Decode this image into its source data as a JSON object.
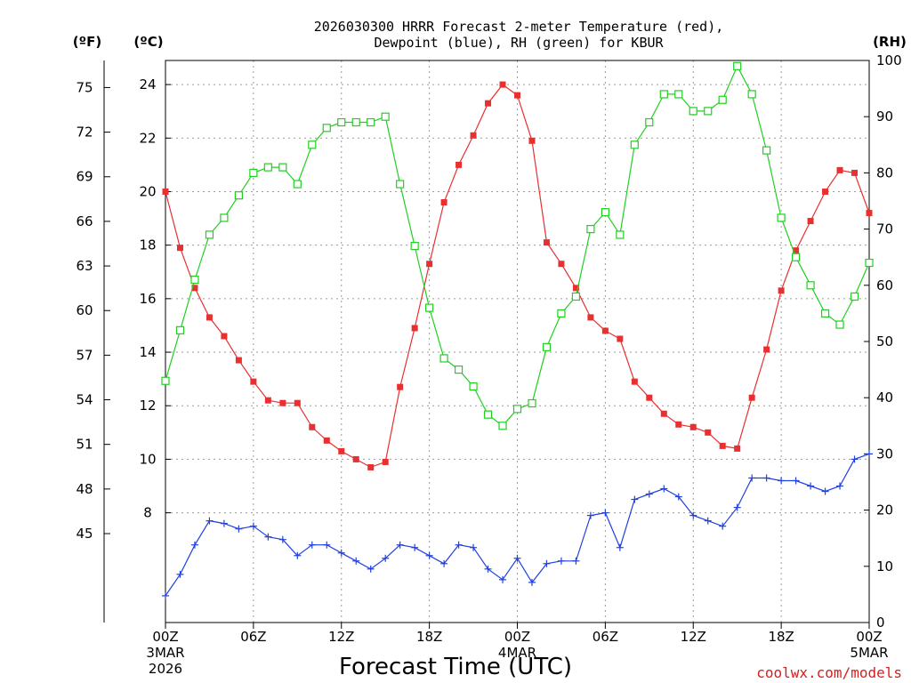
{
  "chart_data": {
    "type": "line",
    "title_line1": "2026030300 HRRR Forecast 2-meter Temperature (red),",
    "title_line2": "Dewpoint (blue), RH (green) for KBUR",
    "unit_f": "(ºF)",
    "unit_c": "(ºC)",
    "unit_rh": "(RH)",
    "xlabel": "Forecast Time (UTC)",
    "credit": "coolwx.com/models",
    "grid": true,
    "x_hours": [
      0,
      1,
      2,
      3,
      4,
      5,
      6,
      7,
      8,
      9,
      10,
      11,
      12,
      13,
      14,
      15,
      16,
      17,
      18,
      19,
      20,
      21,
      22,
      23,
      24,
      25,
      26,
      27,
      28,
      29,
      30,
      31,
      32,
      33,
      34,
      35,
      36,
      37,
      38,
      39,
      40,
      41,
      42,
      43,
      44,
      45,
      46,
      47,
      48
    ],
    "x_ticks": [
      {
        "hour": 0,
        "label": "00Z",
        "sub1": "3MAR",
        "sub2": "2026"
      },
      {
        "hour": 6,
        "label": "06Z",
        "sub1": "",
        "sub2": ""
      },
      {
        "hour": 12,
        "label": "12Z",
        "sub1": "",
        "sub2": ""
      },
      {
        "hour": 18,
        "label": "18Z",
        "sub1": "",
        "sub2": ""
      },
      {
        "hour": 24,
        "label": "00Z",
        "sub1": "4MAR",
        "sub2": ""
      },
      {
        "hour": 30,
        "label": "06Z",
        "sub1": "",
        "sub2": ""
      },
      {
        "hour": 36,
        "label": "12Z",
        "sub1": "",
        "sub2": ""
      },
      {
        "hour": 42,
        "label": "18Z",
        "sub1": "",
        "sub2": ""
      },
      {
        "hour": 48,
        "label": "00Z",
        "sub1": "5MAR",
        "sub2": ""
      }
    ],
    "c_axis": {
      "range": [
        3.9,
        24.9
      ],
      "ticks": [
        "8",
        "10",
        "12",
        "14",
        "16",
        "18",
        "20",
        "22",
        "24"
      ]
    },
    "f_axis": {
      "ticks": [
        "45",
        "48",
        "51",
        "54",
        "57",
        "60",
        "63",
        "66",
        "69",
        "72",
        "75"
      ]
    },
    "rh_axis": {
      "range": [
        0,
        100
      ],
      "ticks": [
        "0",
        "10",
        "20",
        "30",
        "40",
        "50",
        "60",
        "70",
        "80",
        "90",
        "100"
      ]
    },
    "series": [
      {
        "name": "Temperature (red)",
        "color": "#e83030",
        "marker": "filled-square",
        "axis": "c",
        "values": [
          20.0,
          17.9,
          16.4,
          15.3,
          14.6,
          13.7,
          12.9,
          12.2,
          12.1,
          12.1,
          11.2,
          10.7,
          10.3,
          10.0,
          9.7,
          9.9,
          12.7,
          14.9,
          17.3,
          19.6,
          21.0,
          22.1,
          23.3,
          24.0,
          23.6,
          21.9,
          18.1,
          17.3,
          16.4,
          15.3,
          14.8,
          14.5,
          12.9,
          12.3,
          11.7,
          11.3,
          11.2,
          11.0,
          10.5,
          10.4,
          12.3,
          14.1,
          16.3,
          17.8,
          18.9,
          20.0,
          20.8,
          20.7,
          19.2
        ]
      },
      {
        "name": "Dewpoint (blue)",
        "color": "#2040e0",
        "marker": "plus",
        "axis": "c",
        "values": [
          4.9,
          5.7,
          6.8,
          7.7,
          7.6,
          7.4,
          7.5,
          7.1,
          7.0,
          6.4,
          6.8,
          6.8,
          6.5,
          6.2,
          5.9,
          6.3,
          6.8,
          6.7,
          6.4,
          6.1,
          6.8,
          6.7,
          5.9,
          5.5,
          6.3,
          5.4,
          6.1,
          6.2,
          6.2,
          7.9,
          8.0,
          6.7,
          8.5,
          8.7,
          8.9,
          8.6,
          7.9,
          7.7,
          7.5,
          8.2,
          9.3,
          9.3,
          9.2,
          9.2,
          9.0,
          8.8,
          9.0,
          10.0,
          10.2
        ]
      },
      {
        "name": "RH (green)",
        "color": "#20d020",
        "marker": "open-square",
        "axis": "rh",
        "values": [
          43,
          52,
          61,
          69,
          72,
          76,
          80,
          81,
          81,
          78,
          85,
          88,
          89,
          89,
          89,
          90,
          78,
          67,
          56,
          47,
          45,
          42,
          37,
          35,
          38,
          39,
          49,
          55,
          58,
          70,
          73,
          69,
          85,
          89,
          94,
          94,
          91,
          91,
          93,
          99,
          94,
          84,
          72,
          65,
          60,
          55,
          53,
          58,
          64
        ]
      }
    ]
  }
}
